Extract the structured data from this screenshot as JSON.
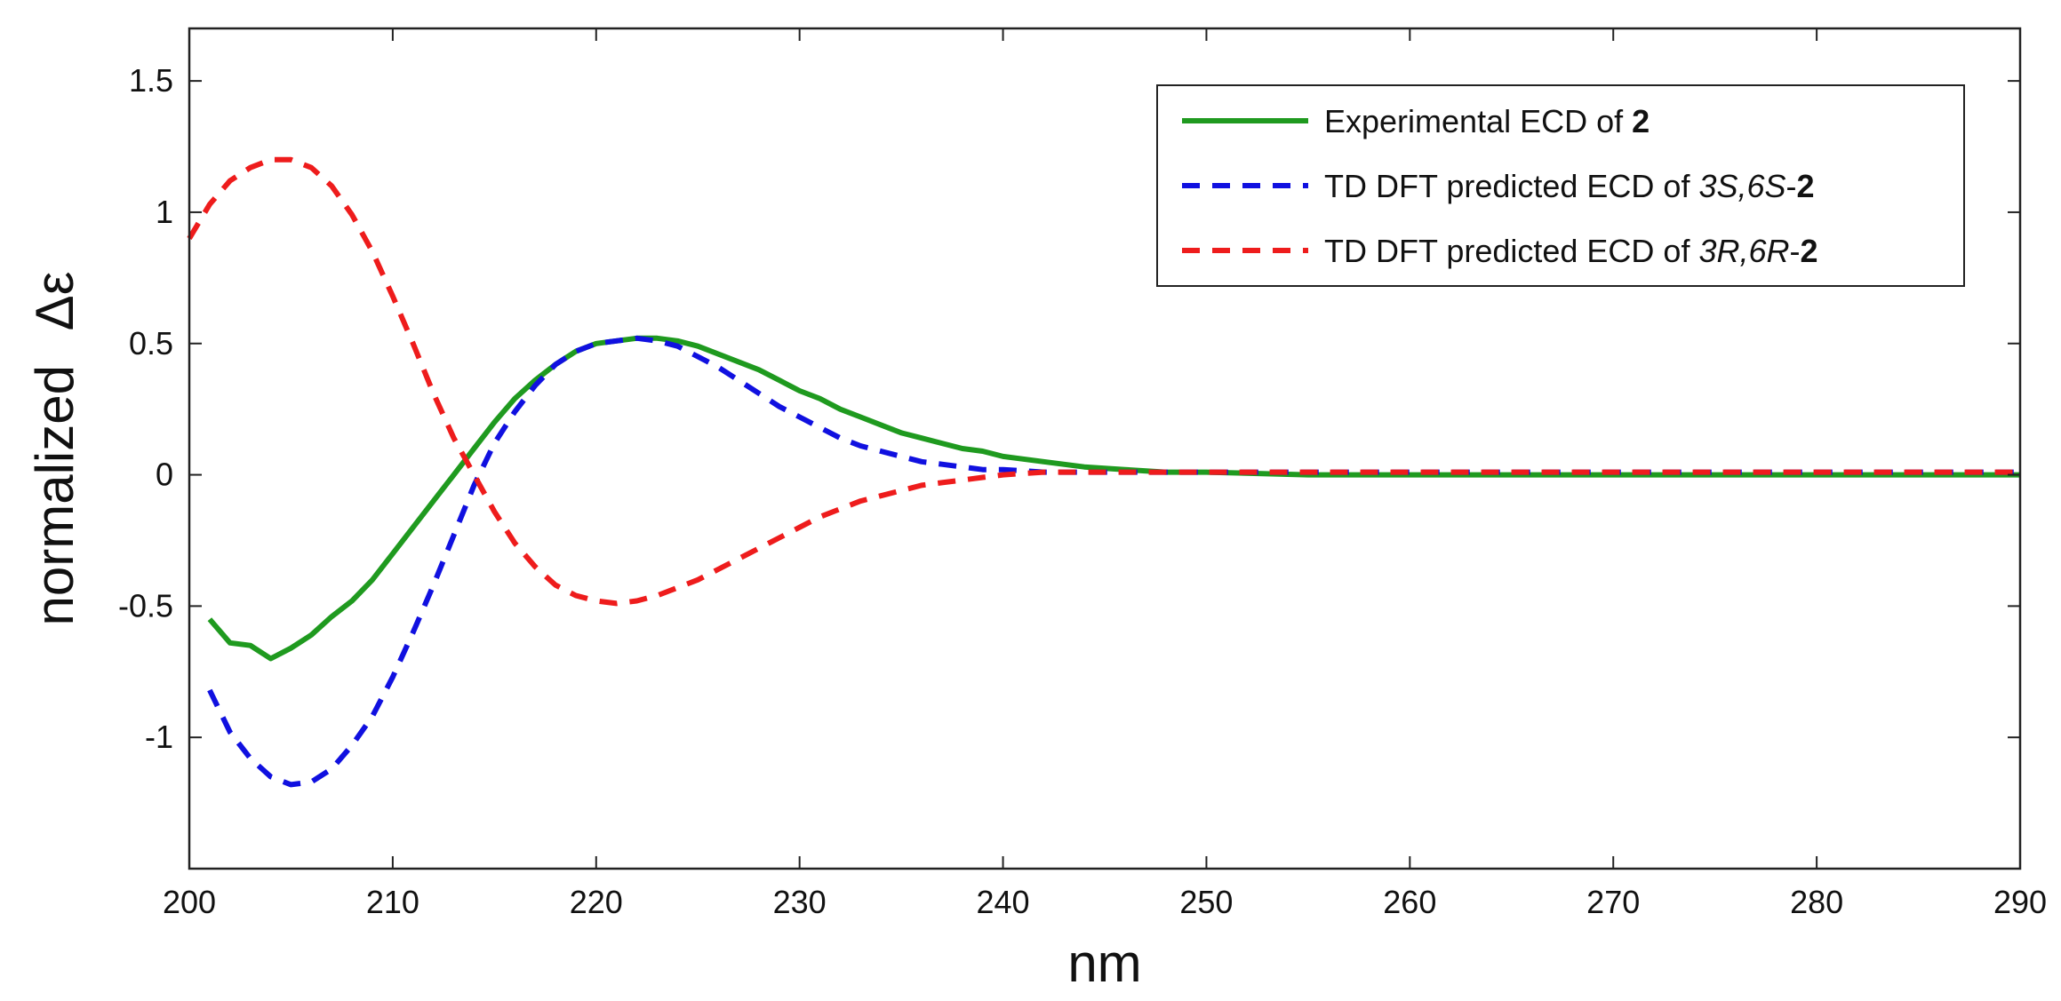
{
  "chart_data": {
    "type": "line",
    "title": "",
    "xlabel": "nm",
    "ylabel": {
      "prefix": "normalized",
      "symbol": "Δε"
    },
    "xlim": [
      200,
      290
    ],
    "ylim": [
      -1.5,
      1.7
    ],
    "xticks": [
      200,
      210,
      220,
      230,
      240,
      250,
      260,
      270,
      280,
      290
    ],
    "yticks": [
      -1,
      -0.5,
      0,
      0.5,
      1,
      1.5
    ],
    "ytick_labels": [
      "-1",
      "-0.5",
      "0",
      "0.5",
      "1",
      "1.5"
    ],
    "legend_position": "top-right",
    "series": [
      {
        "name": "Experimental ECD of 2",
        "legend": [
          {
            "text": "Experimental ECD of ",
            "style": "normal"
          },
          {
            "text": "2",
            "style": "bold"
          }
        ],
        "color": "#1f9a1f",
        "dash": "solid",
        "x": [
          201,
          202,
          203,
          204,
          205,
          206,
          207,
          208,
          209,
          210,
          211,
          212,
          213,
          214,
          215,
          216,
          217,
          218,
          219,
          220,
          221,
          222,
          223,
          224,
          225,
          226,
          227,
          228,
          229,
          230,
          231,
          232,
          233,
          234,
          235,
          236,
          237,
          238,
          239,
          240,
          242,
          244,
          246,
          248,
          250,
          255,
          260,
          265,
          270,
          275,
          280,
          285,
          290
        ],
        "y": [
          -0.55,
          -0.64,
          -0.65,
          -0.7,
          -0.66,
          -0.61,
          -0.54,
          -0.48,
          -0.4,
          -0.3,
          -0.2,
          -0.1,
          0.0,
          0.1,
          0.2,
          0.29,
          0.36,
          0.42,
          0.47,
          0.5,
          0.51,
          0.52,
          0.52,
          0.51,
          0.49,
          0.46,
          0.43,
          0.4,
          0.36,
          0.32,
          0.29,
          0.25,
          0.22,
          0.19,
          0.16,
          0.14,
          0.12,
          0.1,
          0.09,
          0.07,
          0.05,
          0.03,
          0.02,
          0.01,
          0.01,
          0.0,
          0.0,
          0.0,
          0.0,
          0.0,
          0.0,
          0.0,
          0.0
        ]
      },
      {
        "name": "TD DFT predicted ECD of 3S,6S-2",
        "legend": [
          {
            "text": "TD DFT predicted ECD of ",
            "style": "normal"
          },
          {
            "text": "3S,6S",
            "style": "italic"
          },
          {
            "text": "-",
            "style": "normal"
          },
          {
            "text": "2",
            "style": "bold"
          }
        ],
        "color": "#1010e0",
        "dash": "dashed",
        "x": [
          201,
          202,
          203,
          204,
          205,
          206,
          207,
          208,
          209,
          210,
          211,
          212,
          213,
          214,
          215,
          216,
          217,
          218,
          219,
          220,
          221,
          222,
          223,
          224,
          225,
          226,
          227,
          228,
          229,
          230,
          231,
          232,
          233,
          234,
          235,
          236,
          237,
          238,
          239,
          240,
          242,
          244,
          246,
          248,
          250,
          255,
          260,
          265,
          270,
          275,
          280,
          285,
          290
        ],
        "y": [
          -0.82,
          -0.98,
          -1.08,
          -1.15,
          -1.18,
          -1.17,
          -1.12,
          -1.03,
          -0.92,
          -0.77,
          -0.6,
          -0.42,
          -0.23,
          -0.04,
          0.12,
          0.24,
          0.34,
          0.42,
          0.47,
          0.5,
          0.51,
          0.52,
          0.51,
          0.49,
          0.45,
          0.41,
          0.36,
          0.31,
          0.26,
          0.22,
          0.18,
          0.14,
          0.11,
          0.09,
          0.07,
          0.05,
          0.04,
          0.03,
          0.02,
          0.02,
          0.01,
          0.01,
          0.01,
          0.01,
          0.01,
          0.01,
          0.01,
          0.01,
          0.01,
          0.01,
          0.01,
          0.01,
          0.01
        ]
      },
      {
        "name": "TD DFT predicted ECD of 3R,6R-2",
        "legend": [
          {
            "text": "TD DFT predicted ECD of ",
            "style": "normal"
          },
          {
            "text": "3R,6R",
            "style": "italic"
          },
          {
            "text": "-",
            "style": "normal"
          },
          {
            "text": "2",
            "style": "bold"
          }
        ],
        "color": "#ee1c1c",
        "dash": "dashed",
        "x": [
          200,
          201,
          202,
          203,
          204,
          205,
          206,
          207,
          208,
          209,
          210,
          211,
          212,
          213,
          214,
          215,
          216,
          217,
          218,
          219,
          220,
          221,
          222,
          223,
          224,
          225,
          226,
          227,
          228,
          229,
          230,
          231,
          232,
          233,
          234,
          235,
          236,
          237,
          238,
          239,
          240,
          242,
          244,
          246,
          248,
          250,
          255,
          260,
          265,
          270,
          275,
          280,
          285,
          290
        ],
        "y": [
          0.9,
          1.03,
          1.12,
          1.17,
          1.2,
          1.2,
          1.17,
          1.1,
          0.99,
          0.85,
          0.68,
          0.5,
          0.31,
          0.14,
          0.0,
          -0.14,
          -0.26,
          -0.35,
          -0.42,
          -0.46,
          -0.48,
          -0.49,
          -0.48,
          -0.46,
          -0.43,
          -0.4,
          -0.36,
          -0.32,
          -0.28,
          -0.24,
          -0.2,
          -0.16,
          -0.13,
          -0.1,
          -0.08,
          -0.06,
          -0.04,
          -0.03,
          -0.02,
          -0.01,
          0.0,
          0.01,
          0.01,
          0.01,
          0.01,
          0.01,
          0.01,
          0.01,
          0.01,
          0.01,
          0.01,
          0.01,
          0.01,
          0.01
        ]
      }
    ]
  }
}
